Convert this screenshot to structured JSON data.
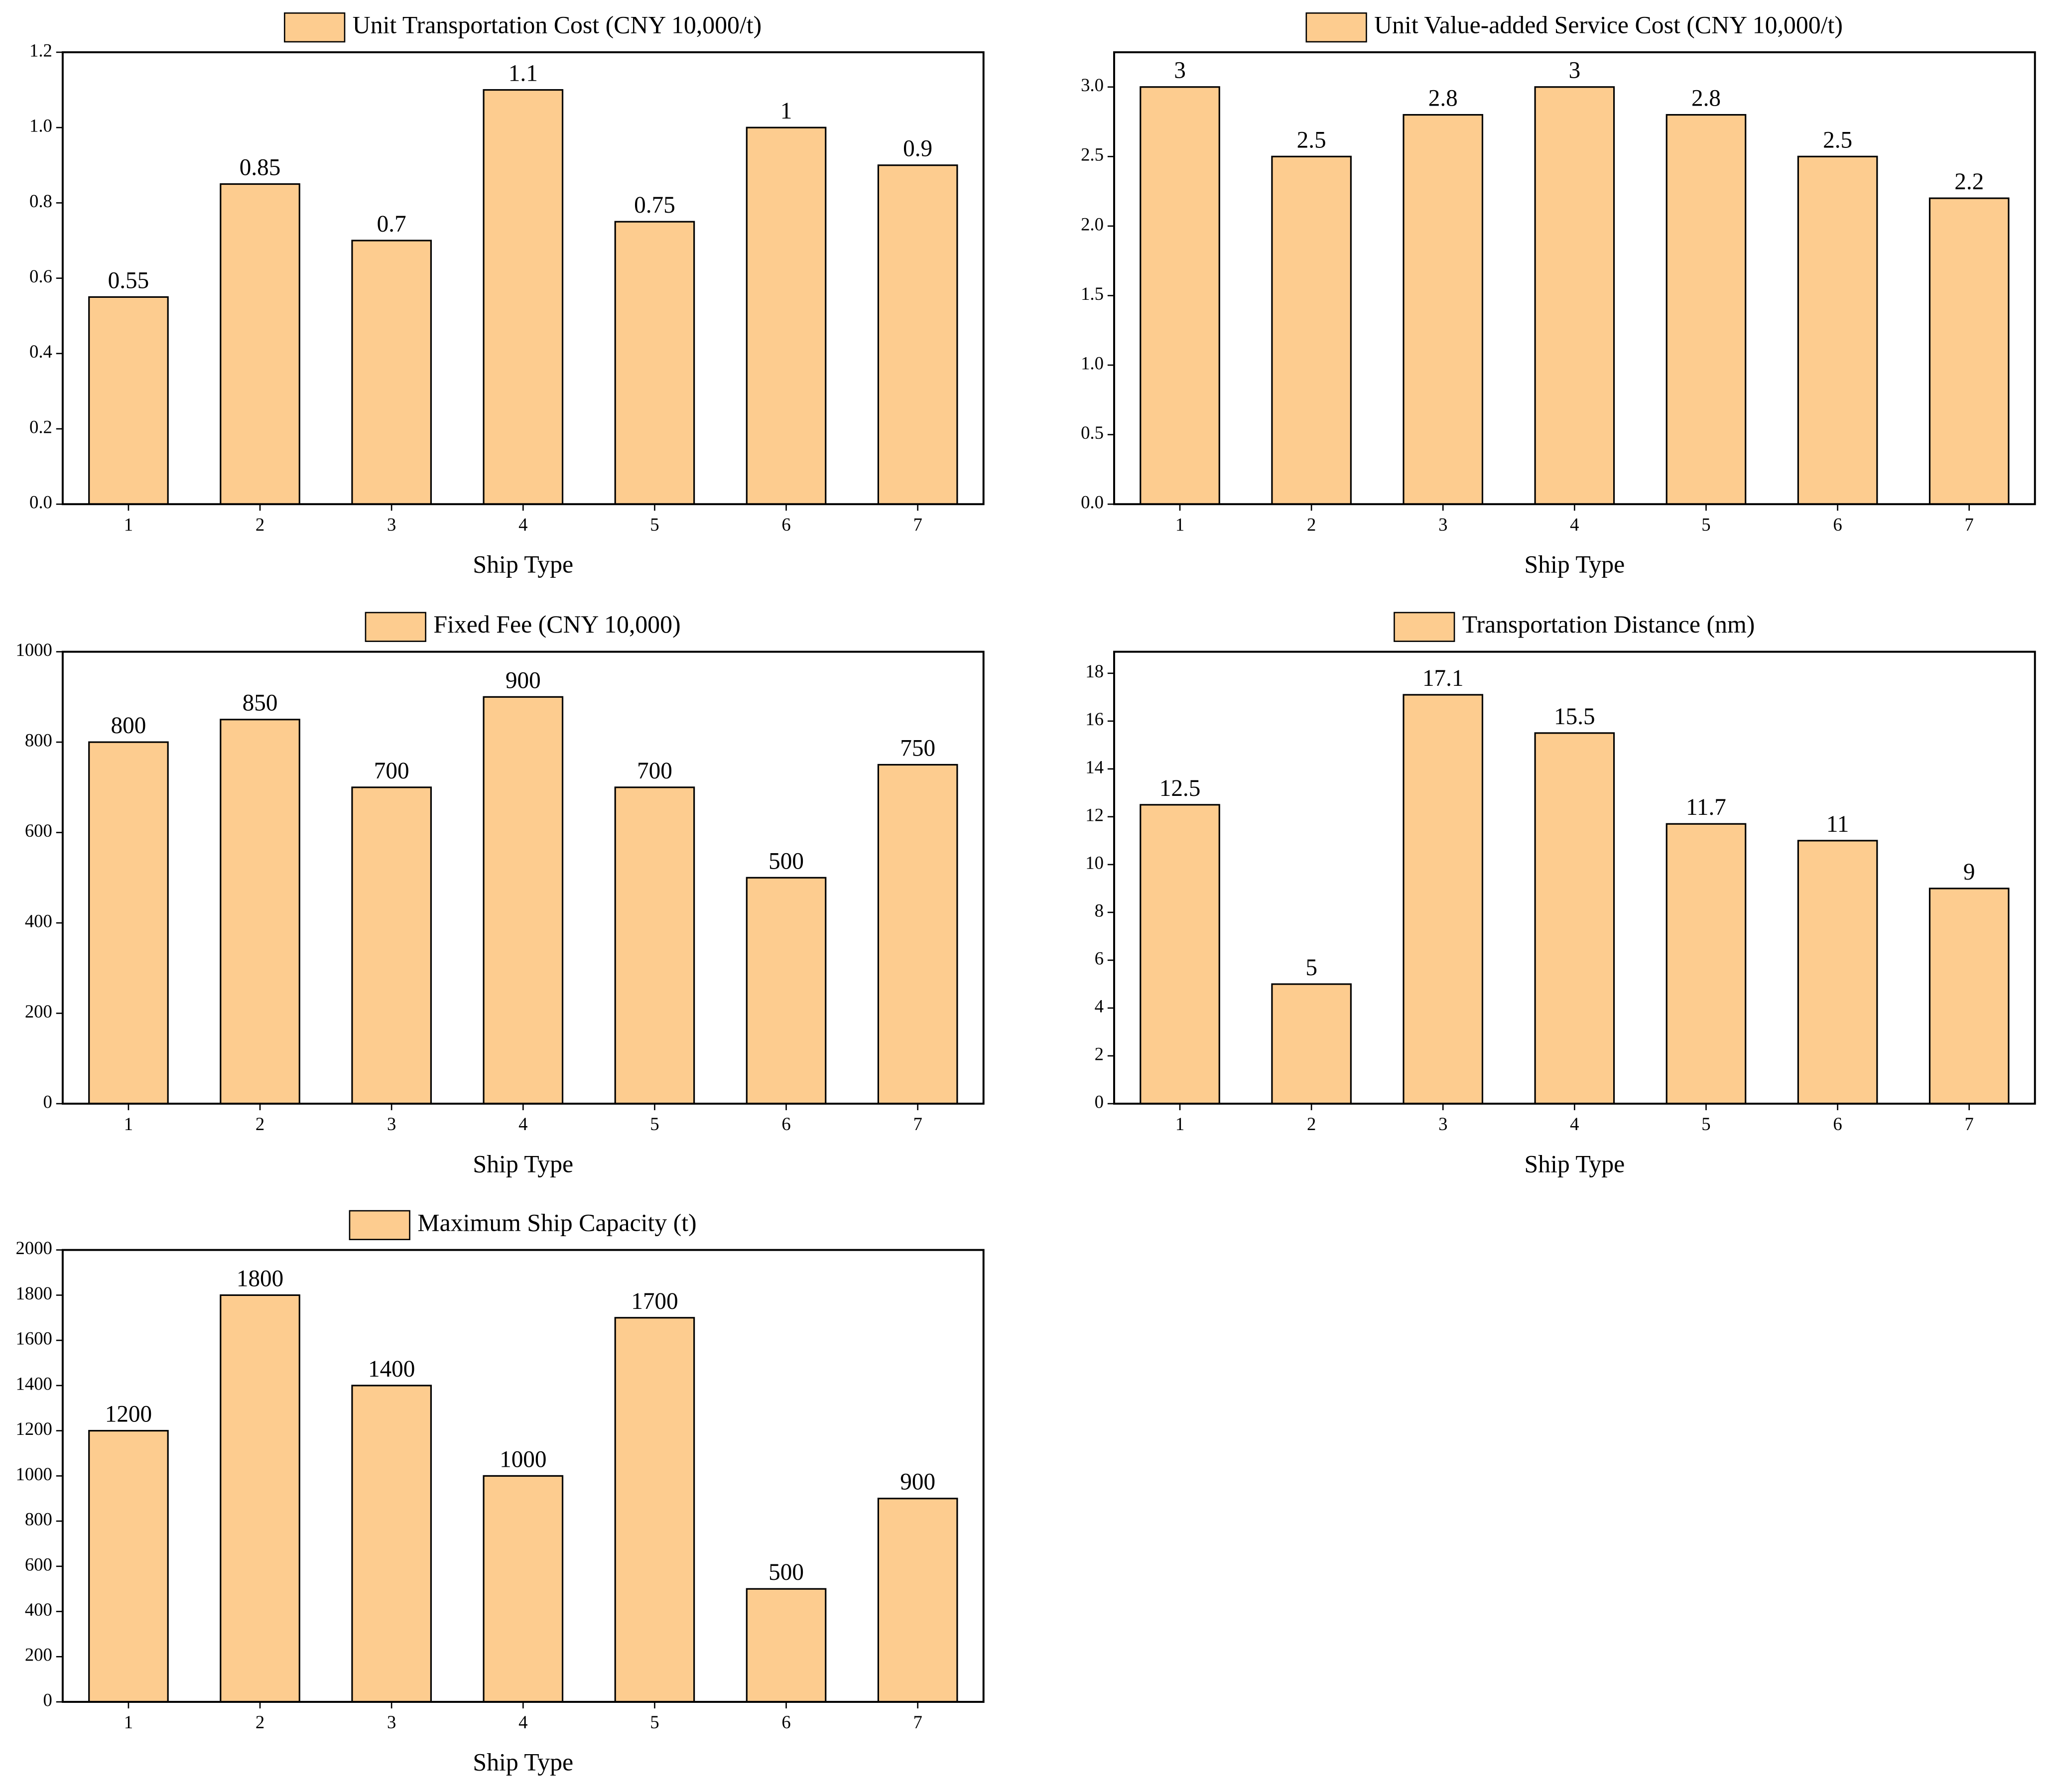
{
  "chart_data": [
    {
      "type": "bar",
      "x_label": "Ship Type",
      "categories": [
        "1",
        "2",
        "3",
        "4",
        "5",
        "6",
        "7"
      ],
      "series": [
        {
          "name": "Unit Transportation Cost (CNY 10,000/t)",
          "color": "#fdcc8f",
          "values": [
            0.55,
            0.85,
            0.7,
            1.1,
            0.75,
            1,
            0.9
          ]
        }
      ],
      "ylim": [
        0,
        1.2
      ],
      "yticks": [
        {
          "value": 0,
          "label": "0.0"
        },
        0.2,
        0.4,
        0.6,
        0.8,
        {
          "value": 1,
          "label": "1.0"
        },
        1.2
      ]
    },
    {
      "type": "bar",
      "x_label": "Ship Type",
      "categories": [
        "1",
        "2",
        "3",
        "4",
        "5",
        "6",
        "7"
      ],
      "series": [
        {
          "name": "Unit Value-added Service Cost (CNY 10,000/t)",
          "color": "#fdcc8f",
          "values": [
            3,
            2.5,
            2.8,
            3,
            2.8,
            2.5,
            2.2
          ]
        }
      ],
      "ylim": [
        0,
        3.25
      ],
      "yticks": [
        {
          "value": 0,
          "label": "0.0"
        },
        0.5,
        {
          "value": 1,
          "label": "1.0"
        },
        1.5,
        {
          "value": 2,
          "label": "2.0"
        },
        2.5,
        {
          "value": 3,
          "label": "3.0"
        }
      ]
    },
    {
      "type": "bar",
      "x_label": "Ship Type",
      "categories": [
        "1",
        "2",
        "3",
        "4",
        "5",
        "6",
        "7"
      ],
      "series": [
        {
          "name": "Fixed Fee (CNY 10,000)",
          "color": "#fdcc8f",
          "values": [
            800,
            850,
            700,
            900,
            700,
            500,
            750
          ]
        }
      ],
      "ylim": [
        0,
        1000
      ],
      "yticks": [
        0,
        200,
        400,
        600,
        800,
        1000
      ]
    },
    {
      "type": "bar",
      "x_label": "Ship Type",
      "categories": [
        "1",
        "2",
        "3",
        "4",
        "5",
        "6",
        "7"
      ],
      "series": [
        {
          "name": "Transportation Distance (nm)",
          "color": "#fdcc8f",
          "values": [
            12.5,
            5,
            17.1,
            15.5,
            11.7,
            11,
            9
          ]
        }
      ],
      "ylim": [
        0,
        18.9
      ],
      "yticks": [
        0,
        2,
        4,
        6,
        8,
        10,
        12,
        14,
        16,
        18
      ]
    },
    {
      "type": "bar",
      "x_label": "Ship Type",
      "categories": [
        "1",
        "2",
        "3",
        "4",
        "5",
        "6",
        "7"
      ],
      "series": [
        {
          "name": "Maximum Ship Capacity (t)",
          "color": "#fdcc8f",
          "values": [
            1200,
            1800,
            1400,
            1000,
            1700,
            500,
            900
          ]
        }
      ],
      "ylim": [
        0,
        2000
      ],
      "yticks": [
        0,
        200,
        400,
        600,
        800,
        1000,
        1200,
        1400,
        1600,
        1800,
        2000
      ]
    }
  ]
}
